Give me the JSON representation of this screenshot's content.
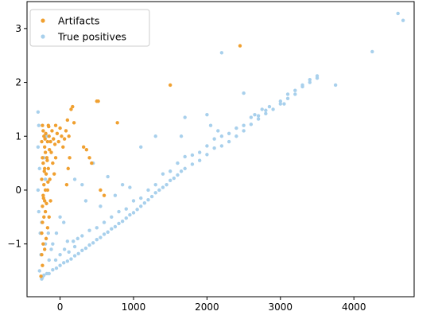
{
  "chart_data": {
    "type": "scatter",
    "title": "",
    "xlabel": "",
    "ylabel": "",
    "xlim": [
      -450,
      4820
    ],
    "ylim": [
      -1.98,
      3.5
    ],
    "xticks": [
      0,
      1000,
      2000,
      3000,
      4000
    ],
    "yticks": [
      -1,
      0,
      1,
      2,
      3
    ],
    "xtick_labels": [
      "0",
      "1000",
      "2000",
      "3000",
      "4000"
    ],
    "ytick_labels": [
      "−1",
      "0",
      "1",
      "2",
      "3"
    ],
    "legend": {
      "position": "top-left"
    },
    "series": [
      {
        "name": "Artifacts",
        "color": "#f0a030",
        "points": [
          [
            -240,
            1.2
          ],
          [
            -230,
            1.1
          ],
          [
            -220,
            1.0
          ],
          [
            -250,
            0.9
          ],
          [
            -210,
            0.8
          ],
          [
            -200,
            0.7
          ],
          [
            -240,
            0.6
          ],
          [
            -230,
            0.5
          ],
          [
            -210,
            0.4
          ],
          [
            -190,
            0.3
          ],
          [
            -250,
            0.2
          ],
          [
            -220,
            0.1
          ],
          [
            -200,
            0.0
          ],
          [
            -230,
            -0.1
          ],
          [
            -210,
            -0.2
          ],
          [
            -240,
            -0.3
          ],
          [
            -200,
            -0.4
          ],
          [
            -220,
            -0.5
          ],
          [
            -240,
            -0.6
          ],
          [
            -250,
            -0.8
          ],
          [
            -230,
            -1.0
          ],
          [
            -250,
            -1.2
          ],
          [
            -240,
            -1.4
          ],
          [
            -260,
            -1.6
          ],
          [
            -160,
            1.2
          ],
          [
            -150,
            1.0
          ],
          [
            -130,
            0.9
          ],
          [
            -110,
            1.1
          ],
          [
            -90,
            0.95
          ],
          [
            -70,
            0.85
          ],
          [
            -60,
            1.2
          ],
          [
            -40,
            1.05
          ],
          [
            -20,
            0.9
          ],
          [
            0,
            1.15
          ],
          [
            20,
            1.0
          ],
          [
            40,
            0.8
          ],
          [
            60,
            0.95
          ],
          [
            80,
            1.1
          ],
          [
            100,
            1.3
          ],
          [
            120,
            1.0
          ],
          [
            150,
            1.5
          ],
          [
            170,
            1.55
          ],
          [
            190,
            1.25
          ],
          [
            130,
            0.6
          ],
          [
            110,
            0.4
          ],
          [
            90,
            0.1
          ],
          [
            -120,
            0.7
          ],
          [
            -100,
            0.5
          ],
          [
            -80,
            0.3
          ],
          [
            -60,
            0.6
          ],
          [
            -140,
            0.2
          ],
          [
            -170,
            0.0
          ],
          [
            -130,
            -0.2
          ],
          [
            -150,
            -0.5
          ],
          [
            -170,
            -0.7
          ],
          [
            -190,
            -0.9
          ],
          [
            -210,
            -1.1
          ],
          [
            -160,
            0.4
          ],
          [
            -180,
            0.6
          ],
          [
            -170,
            0.9
          ],
          [
            -155,
            1.18
          ],
          [
            -145,
            0.75
          ],
          [
            -165,
            0.15
          ],
          [
            -185,
            -0.25
          ],
          [
            320,
            0.8
          ],
          [
            360,
            0.75
          ],
          [
            400,
            0.6
          ],
          [
            430,
            0.5
          ],
          [
            500,
            1.65
          ],
          [
            520,
            1.65
          ],
          [
            550,
            0.0
          ],
          [
            600,
            -0.1
          ],
          [
            780,
            1.25
          ],
          [
            1500,
            1.95
          ],
          [
            2450,
            2.68
          ],
          [
            -195,
            1.05
          ],
          [
            -205,
            0.95
          ],
          [
            -175,
            0.55
          ],
          [
            -215,
            0.35
          ],
          [
            -225,
            -0.15
          ]
        ]
      },
      {
        "name": "True positives",
        "color": "#a8d0ec",
        "points": [
          [
            -300,
            1.45
          ],
          [
            -290,
            1.2
          ],
          [
            -300,
            0.8
          ],
          [
            -280,
            0.4
          ],
          [
            -300,
            0.0
          ],
          [
            -290,
            -0.4
          ],
          [
            -270,
            -0.8
          ],
          [
            -260,
            -1.2
          ],
          [
            -280,
            -1.5
          ],
          [
            -250,
            -1.65
          ],
          [
            -240,
            -1.62
          ],
          [
            -220,
            -1.58
          ],
          [
            -180,
            -1.55
          ],
          [
            -150,
            -1.55
          ],
          [
            -100,
            -1.48
          ],
          [
            -50,
            -1.45
          ],
          [
            0,
            -1.4
          ],
          [
            50,
            -1.35
          ],
          [
            100,
            -1.32
          ],
          [
            150,
            -1.28
          ],
          [
            200,
            -1.22
          ],
          [
            250,
            -1.18
          ],
          [
            300,
            -1.12
          ],
          [
            350,
            -1.08
          ],
          [
            400,
            -1.02
          ],
          [
            450,
            -0.98
          ],
          [
            500,
            -0.92
          ],
          [
            550,
            -0.88
          ],
          [
            600,
            -0.82
          ],
          [
            650,
            -0.78
          ],
          [
            700,
            -0.72
          ],
          [
            750,
            -0.68
          ],
          [
            800,
            -0.62
          ],
          [
            850,
            -0.58
          ],
          [
            900,
            -0.52
          ],
          [
            950,
            -0.46
          ],
          [
            1000,
            -0.42
          ],
          [
            1050,
            -0.36
          ],
          [
            1100,
            -0.3
          ],
          [
            1150,
            -0.24
          ],
          [
            1200,
            -0.18
          ],
          [
            1250,
            -0.12
          ],
          [
            1300,
            -0.05
          ],
          [
            1350,
            0.0
          ],
          [
            1400,
            0.05
          ],
          [
            1450,
            0.1
          ],
          [
            1500,
            0.18
          ],
          [
            1550,
            0.22
          ],
          [
            1600,
            0.28
          ],
          [
            1650,
            0.35
          ],
          [
            1700,
            0.4
          ],
          [
            1800,
            0.48
          ],
          [
            1900,
            0.55
          ],
          [
            2000,
            0.66
          ],
          [
            2100,
            0.78
          ],
          [
            2200,
            0.82
          ],
          [
            2300,
            0.9
          ],
          [
            2400,
            1.0
          ],
          [
            2500,
            1.1
          ],
          [
            2600,
            1.22
          ],
          [
            2700,
            1.32
          ],
          [
            2800,
            1.42
          ],
          [
            2900,
            1.5
          ],
          [
            3000,
            1.6
          ],
          [
            3100,
            1.7
          ],
          [
            3200,
            1.78
          ],
          [
            3300,
            1.92
          ],
          [
            3400,
            2.0
          ],
          [
            3500,
            2.08
          ],
          [
            -100,
            -1.0
          ],
          [
            0,
            -1.2
          ],
          [
            100,
            -0.95
          ],
          [
            200,
            -1.05
          ],
          [
            300,
            -0.85
          ],
          [
            400,
            -0.75
          ],
          [
            500,
            -0.7
          ],
          [
            600,
            -0.6
          ],
          [
            700,
            -0.5
          ],
          [
            800,
            -0.4
          ],
          [
            900,
            -0.35
          ],
          [
            1000,
            -0.2
          ],
          [
            1100,
            -0.15
          ],
          [
            1200,
            0.0
          ],
          [
            1300,
            0.1
          ],
          [
            1400,
            0.3
          ],
          [
            1500,
            0.35
          ],
          [
            1600,
            0.5
          ],
          [
            1700,
            0.62
          ],
          [
            1800,
            0.65
          ],
          [
            1900,
            0.7
          ],
          [
            2000,
            0.82
          ],
          [
            2100,
            0.95
          ],
          [
            2200,
            1.0
          ],
          [
            2300,
            1.05
          ],
          [
            2400,
            1.15
          ],
          [
            2500,
            1.2
          ],
          [
            2600,
            1.35
          ],
          [
            2700,
            1.38
          ],
          [
            2800,
            1.48
          ],
          [
            3000,
            1.65
          ],
          [
            3100,
            1.78
          ],
          [
            3200,
            1.85
          ],
          [
            3300,
            1.95
          ],
          [
            3400,
            2.05
          ],
          [
            3500,
            2.12
          ],
          [
            200,
            0.2
          ],
          [
            300,
            0.1
          ],
          [
            350,
            -0.2
          ],
          [
            450,
            0.5
          ],
          [
            550,
            -0.3
          ],
          [
            650,
            0.25
          ],
          [
            750,
            -0.1
          ],
          [
            850,
            0.1
          ],
          [
            950,
            0.05
          ],
          [
            1100,
            0.8
          ],
          [
            1300,
            1.0
          ],
          [
            1650,
            1.0
          ],
          [
            1700,
            1.35
          ],
          [
            2000,
            1.4
          ],
          [
            2050,
            1.2
          ],
          [
            2150,
            1.1
          ],
          [
            2500,
            1.8
          ],
          [
            2650,
            1.4
          ],
          [
            2750,
            1.5
          ],
          [
            2850,
            1.55
          ],
          [
            3050,
            1.6
          ],
          [
            0,
            -0.5
          ],
          [
            -50,
            -0.8
          ],
          [
            50,
            -0.6
          ],
          [
            -150,
            -1.3
          ],
          [
            -200,
            -1.0
          ],
          [
            -250,
            -0.6
          ],
          [
            -200,
            0.2
          ],
          [
            -220,
            0.6
          ],
          [
            -180,
            1.0
          ],
          [
            -160,
            -0.8
          ],
          [
            -120,
            -1.1
          ],
          [
            -60,
            -1.3
          ],
          [
            60,
            -1.1
          ],
          [
            120,
            -1.15
          ],
          [
            180,
            -0.95
          ],
          [
            240,
            -0.9
          ],
          [
            2200,
            2.55
          ],
          [
            3750,
            1.95
          ],
          [
            4250,
            2.57
          ],
          [
            4600,
            3.28
          ],
          [
            4670,
            3.15
          ]
        ]
      }
    ]
  }
}
